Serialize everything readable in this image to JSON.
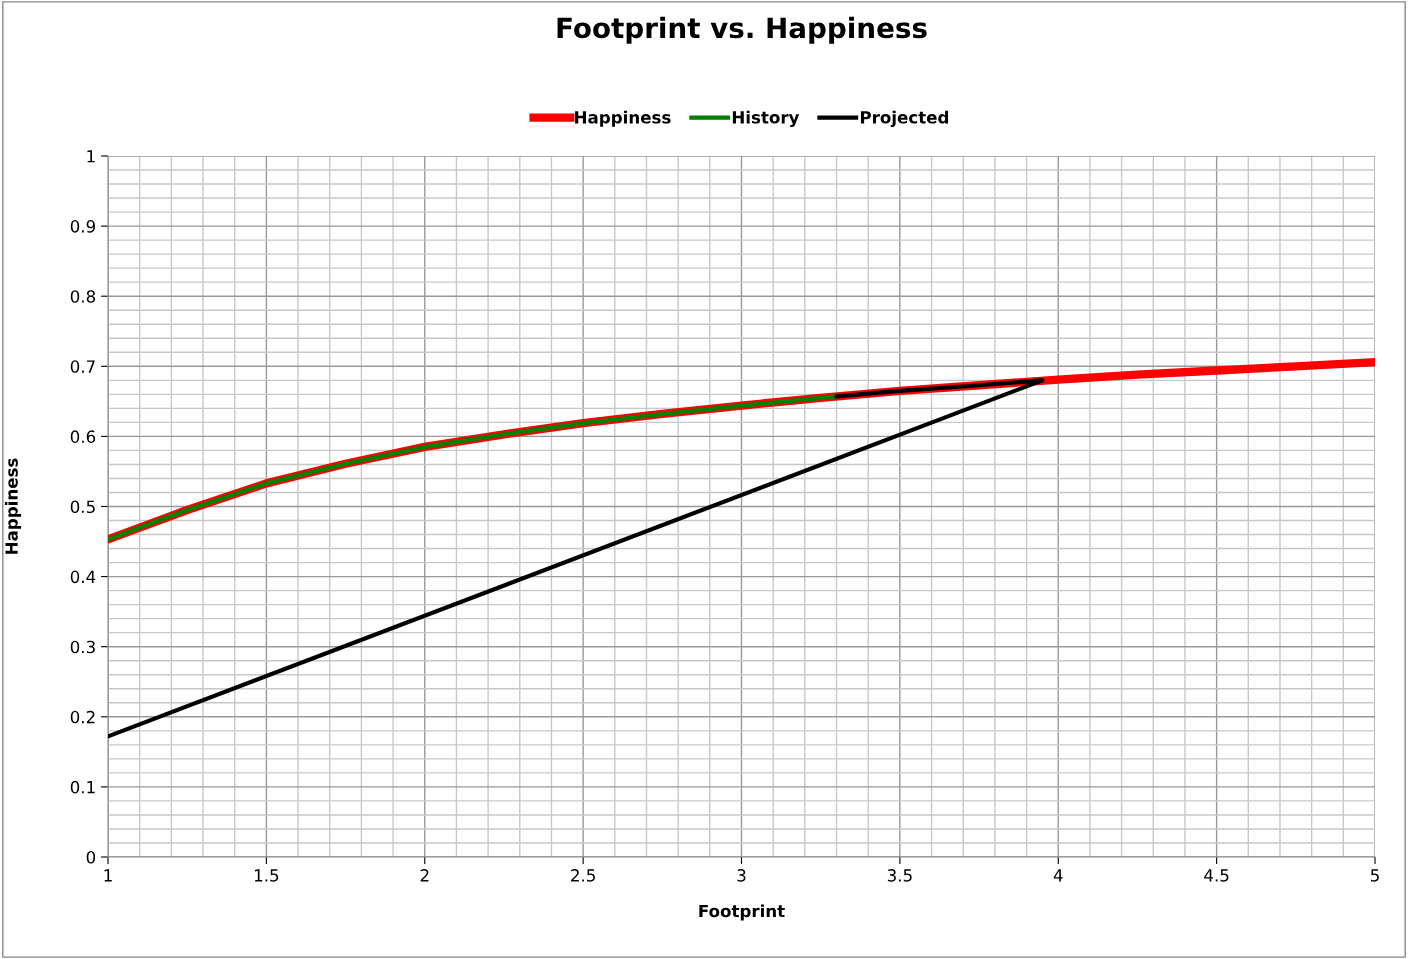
{
  "chart_data": {
    "type": "line",
    "title": "Footprint vs. Happiness",
    "xlabel": "Footprint",
    "ylabel": "Happiness",
    "series": [
      {
        "name": "Happiness",
        "color": "#ff0000",
        "x": [
          1,
          1.1,
          1.25,
          1.5,
          1.75,
          2,
          2.25,
          2.5,
          2.75,
          3,
          3.25,
          3.5,
          3.75,
          4,
          4.25,
          4.5,
          4.75,
          5
        ],
        "values": [
          0.453,
          0.47,
          0.495,
          0.533,
          0.561,
          0.585,
          0.603,
          0.619,
          0.632,
          0.644,
          0.655,
          0.665,
          0.673,
          0.681,
          0.688,
          0.694,
          0.7,
          0.706
        ]
      },
      {
        "name": "History",
        "color": "#008000",
        "x": [
          1,
          1.1,
          1.25,
          1.5,
          1.75,
          2,
          2.25,
          2.5,
          2.75,
          3,
          3.25,
          3.3
        ],
        "values": [
          0.453,
          0.47,
          0.495,
          0.533,
          0.561,
          0.585,
          0.603,
          0.619,
          0.632,
          0.644,
          0.655,
          0.657
        ]
      },
      {
        "name": "Projected",
        "color": "#000000",
        "x": [
          3.3,
          3.5,
          3.75,
          3.95,
          1
        ],
        "values": [
          0.657,
          0.665,
          0.673,
          0.68,
          0.172
        ]
      }
    ],
    "xlim": [
      1,
      5
    ],
    "xticks": [
      1,
      1.5,
      2,
      2.5,
      3,
      3.5,
      4,
      4.5,
      5
    ],
    "ylim": [
      0,
      1
    ],
    "yticks": [
      0,
      0.1,
      0.2,
      0.3,
      0.4,
      0.5,
      0.6,
      0.7,
      0.8,
      0.9,
      1
    ],
    "grid": true,
    "legend": "top",
    "marker": "none",
    "line_style": "solid"
  }
}
